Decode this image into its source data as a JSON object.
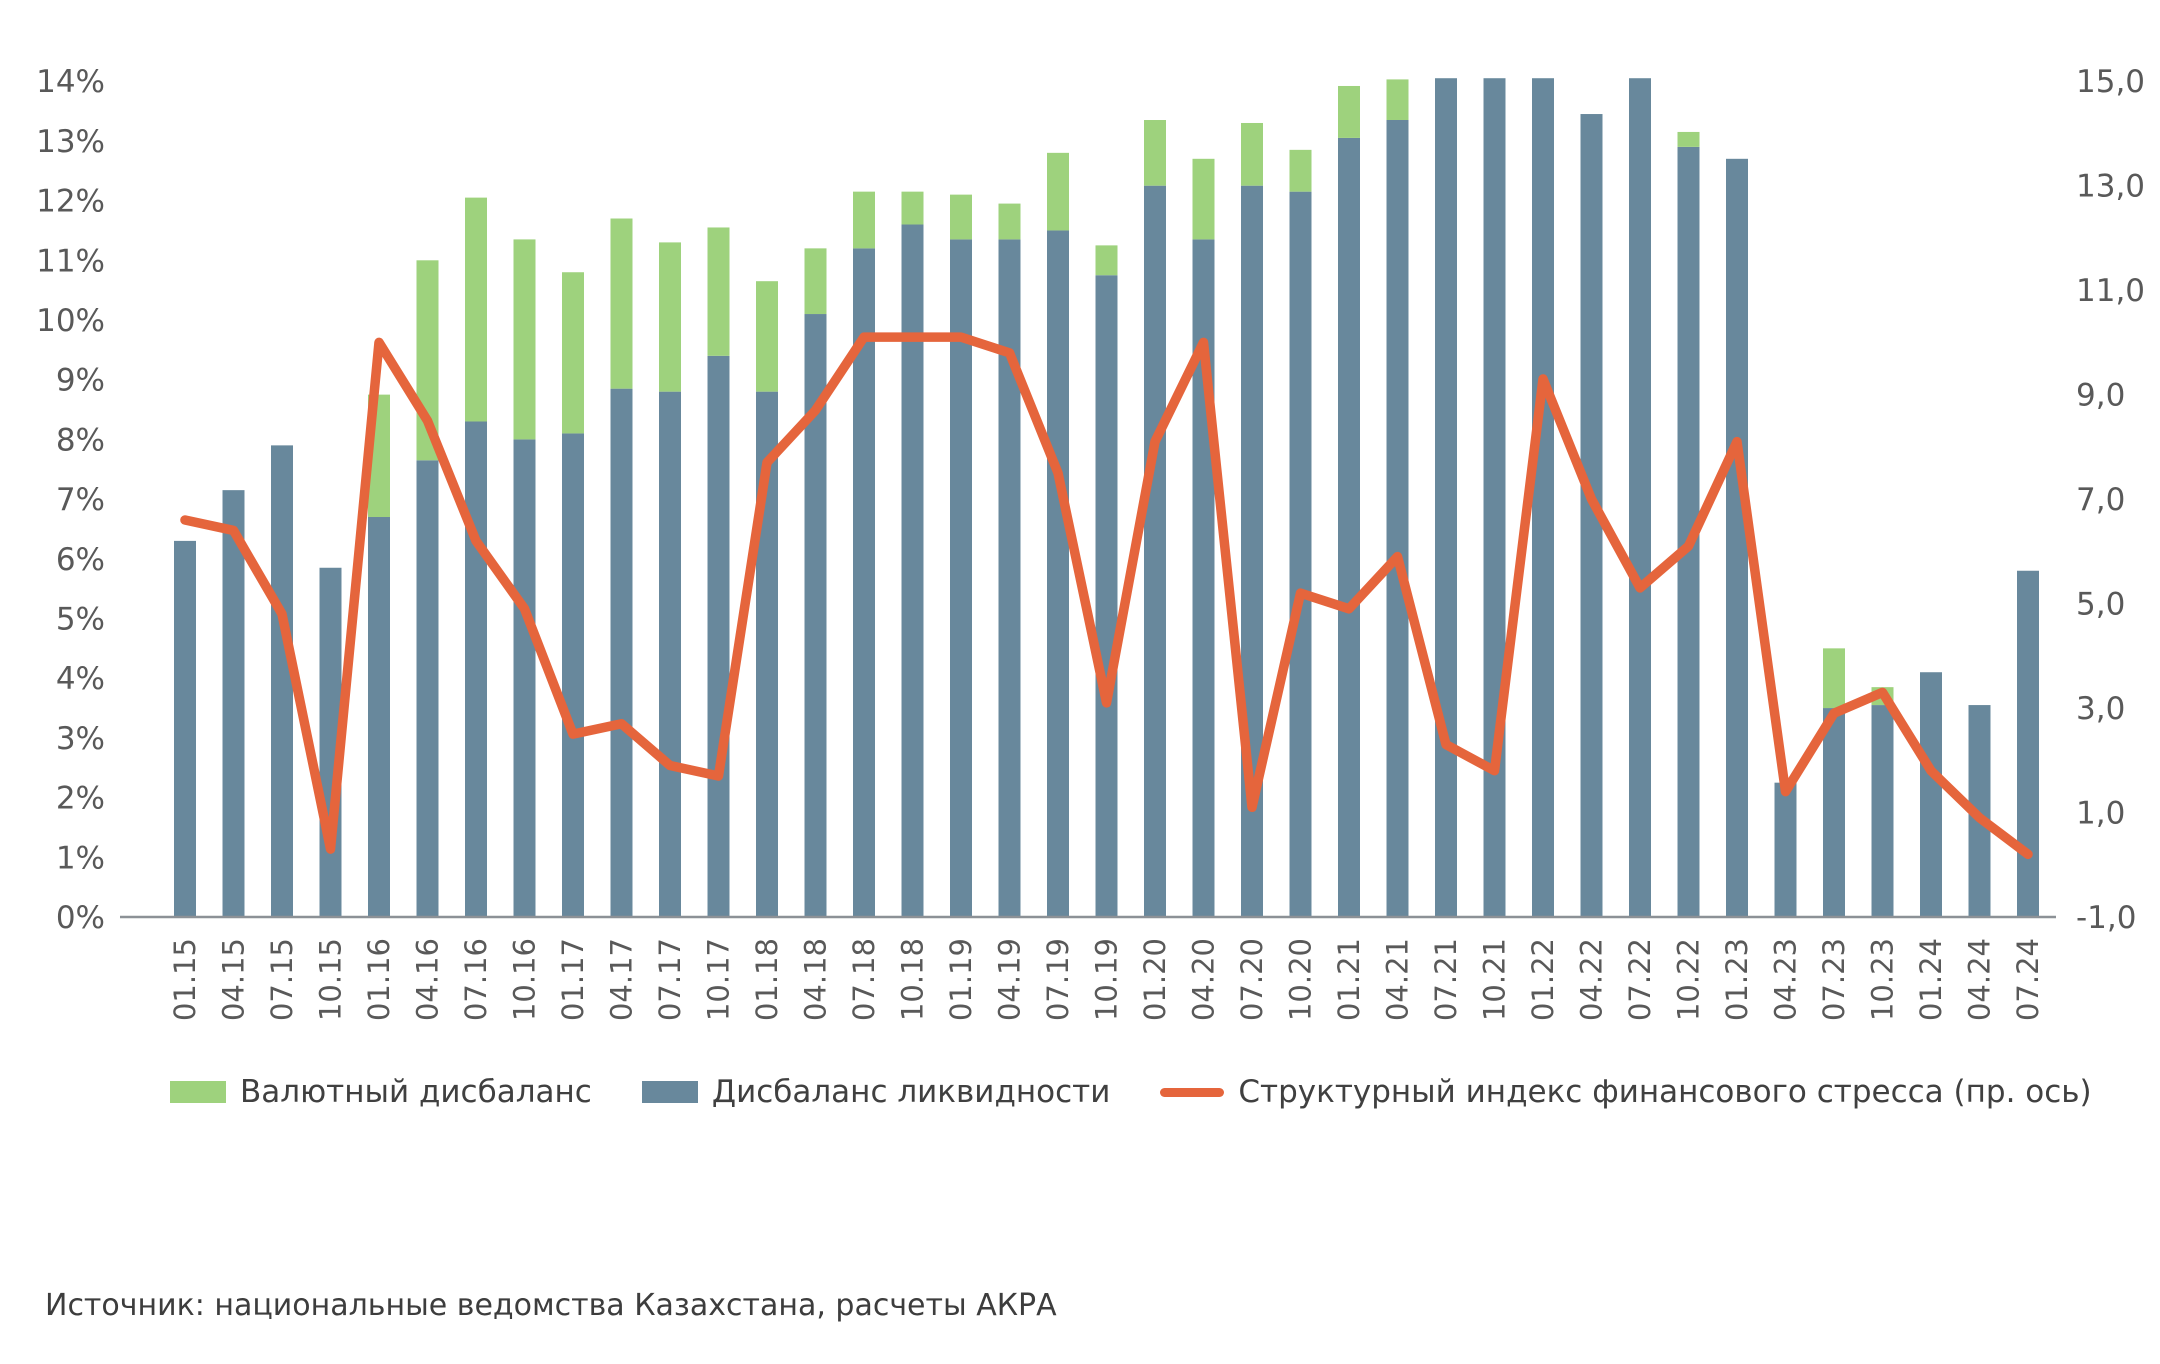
{
  "page": {
    "background": "#ffffff"
  },
  "colors": {
    "currency_green": "#9ed27d",
    "liquidity_slate": "#68889c",
    "stress_orange": "#e5653c",
    "axis_text": "#595959",
    "axis_line": "#8c9196",
    "legend_text": "#404040"
  },
  "legend": {
    "items": [
      {
        "label": "Валютный дисбаланс",
        "color": "#9ed27d",
        "type": "bar"
      },
      {
        "label": "Дисбаланс ликвидности",
        "color": "#68889c",
        "type": "bar"
      },
      {
        "label": "Структурный индекс финансового стресса (пр. ось)",
        "color": "#e5653c",
        "type": "line"
      }
    ]
  },
  "source_note": "Источник: национальные ведомства Казахстана, расчеты АКРА",
  "chart_data": {
    "type": "bar",
    "subtype": "stacked-bars-with-line",
    "grid": false,
    "legend_position": "bottom",
    "categories": [
      "01.15",
      "04.15",
      "07.15",
      "10.15",
      "01.16",
      "04.16",
      "07.16",
      "10.16",
      "01.17",
      "04.17",
      "07.17",
      "10.17",
      "01.18",
      "04.18",
      "07.18",
      "10.18",
      "01.19",
      "04.19",
      "07.19",
      "10.19",
      "01.20",
      "04.20",
      "07.20",
      "10.20",
      "01.21",
      "04.21",
      "07.21",
      "10.21",
      "01.22",
      "04.22",
      "07.22",
      "10.22",
      "01.23",
      "04.23",
      "07.23",
      "10.23",
      "01.24",
      "04.24",
      "07.24"
    ],
    "series": [
      {
        "name": "Дисбаланс ликвидности",
        "type": "bar",
        "axis": "left",
        "unit": "%",
        "color": "#68889c",
        "values": [
          6.3,
          7.15,
          7.9,
          5.85,
          6.7,
          7.65,
          8.3,
          8.0,
          8.1,
          8.85,
          8.8,
          9.4,
          8.8,
          10.1,
          11.2,
          11.6,
          11.35,
          11.35,
          11.5,
          10.75,
          12.25,
          11.35,
          12.25,
          12.15,
          13.05,
          13.35,
          14.05,
          14.05,
          14.05,
          13.45,
          14.05,
          12.9,
          12.7,
          2.25,
          3.5,
          3.55,
          4.1,
          3.55,
          5.8
        ]
      },
      {
        "name": "Валютный дисбаланс",
        "type": "bar",
        "axis": "left",
        "unit": "%",
        "color": "#9ed27d",
        "stacked_on": "Дисбаланс ликвидности",
        "values": [
          0,
          0,
          0,
          0,
          2.05,
          3.35,
          3.75,
          3.35,
          2.7,
          2.85,
          2.5,
          2.15,
          1.85,
          1.1,
          0.95,
          0.55,
          0.75,
          0.6,
          1.3,
          0.5,
          1.1,
          1.35,
          1.05,
          0.7,
          0.87,
          0.68,
          0,
          0,
          0,
          0,
          0,
          0.25,
          0,
          0,
          1.0,
          0.3,
          0,
          0,
          0
        ]
      },
      {
        "name": "Структурный индекс финансового стресса (пр. ось)",
        "type": "line",
        "axis": "right",
        "color": "#e5653c",
        "values": [
          6.6,
          6.4,
          4.8,
          0.3,
          10.0,
          8.5,
          6.2,
          4.9,
          2.5,
          2.7,
          1.9,
          1.7,
          7.7,
          8.7,
          10.1,
          10.1,
          10.1,
          9.8,
          7.5,
          3.1,
          8.1,
          10.0,
          1.1,
          5.2,
          4.9,
          5.9,
          2.3,
          1.8,
          9.3,
          7.0,
          5.3,
          6.1,
          8.1,
          1.4,
          2.9,
          3.3,
          1.8,
          0.9,
          0.2
        ]
      }
    ],
    "left_axis": {
      "min": 0,
      "max": 14,
      "tick_step": 1,
      "ticks": [
        "0%",
        "1%",
        "2%",
        "3%",
        "4%",
        "5%",
        "6%",
        "7%",
        "8%",
        "9%",
        "10%",
        "11%",
        "12%",
        "13%",
        "14%"
      ]
    },
    "right_axis": {
      "min": -1.0,
      "max": 15.0,
      "tick_step": 2,
      "ticks": [
        "-1,0",
        "1,0",
        "3,0",
        "5,0",
        "7,0",
        "9,0",
        "11,0",
        "13,0",
        "15,0"
      ]
    },
    "title": "",
    "xlabel": "",
    "ylabel": ""
  }
}
